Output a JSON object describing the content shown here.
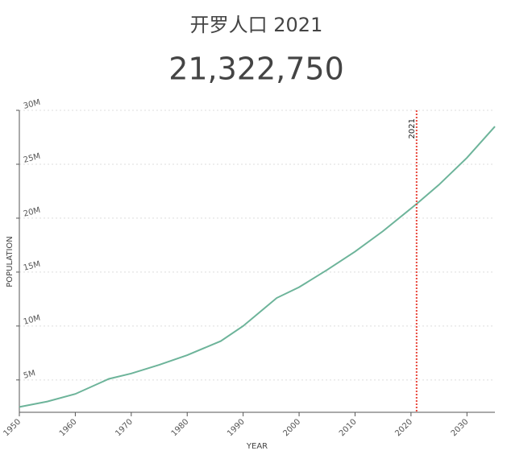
{
  "chart_data": {
    "type": "line",
    "title": "开罗人口 2021",
    "headline": "21,322,750",
    "x_label": "YEAR",
    "y_label": "POPULATION",
    "x": [
      1950,
      1955,
      1960,
      1966,
      1970,
      1975,
      1980,
      1986,
      1990,
      1996,
      2000,
      2005,
      2010,
      2015,
      2021,
      2025,
      2030,
      2035
    ],
    "series": [
      {
        "name": "Cairo",
        "color": "#6db49a",
        "values": [
          2494000,
          3000000,
          3700000,
          5100000,
          5600000,
          6400000,
          7300000,
          8600000,
          10000000,
          12600000,
          13600000,
          15200000,
          16900000,
          18800000,
          21322750,
          23100000,
          25600000,
          28500000
        ]
      }
    ],
    "xlim": [
      1950,
      2035
    ],
    "xticks": [
      1950,
      1960,
      1970,
      1980,
      1990,
      2000,
      2010,
      2020,
      2030
    ],
    "ylim": [
      2000000,
      30000000
    ],
    "yticks": [
      {
        "value": 5000000,
        "label": "5M"
      },
      {
        "value": 10000000,
        "label": "10M"
      },
      {
        "value": 15000000,
        "label": "15M"
      },
      {
        "value": 20000000,
        "label": "20M"
      },
      {
        "value": 25000000,
        "label": "25M"
      },
      {
        "value": 30000000,
        "label": "30M"
      }
    ],
    "marker_x": 2021,
    "marker_color": "#e8463a",
    "grid": true
  }
}
